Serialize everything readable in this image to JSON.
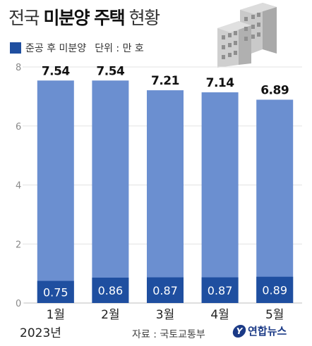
{
  "header": {
    "title_prefix": "전국",
    "title_bold": "미분양 주택",
    "title_suffix": "현황"
  },
  "legend": {
    "series_label": "준공 후 미분양",
    "unit_label": "단위 : 만 호"
  },
  "footer": {
    "year": "2023년",
    "source": "자료 : 국토교통부",
    "logo_text": "연합뉴스",
    "logo_mark": "Y"
  },
  "colors": {
    "total_bar": "#6b8fd0",
    "after_completion_bar": "#1f4fa0",
    "grid": "#e3e3e3"
  },
  "chart_data": {
    "type": "bar",
    "stacked": false,
    "categories": [
      "1월",
      "2월",
      "3월",
      "4월",
      "5월"
    ],
    "series": [
      {
        "name": "",
        "values": [
          7.54,
          7.54,
          7.21,
          7.14,
          6.89
        ]
      },
      {
        "name": "준공 후 미분양",
        "values": [
          0.75,
          0.86,
          0.87,
          0.87,
          0.89
        ]
      }
    ],
    "ylim": [
      0,
      8
    ],
    "yticks": [
      0,
      2,
      4,
      6,
      8
    ],
    "grid": true,
    "legend": "top-left",
    "title": "전국 미분양 주택 현황",
    "xlabel": "",
    "ylabel": ""
  }
}
